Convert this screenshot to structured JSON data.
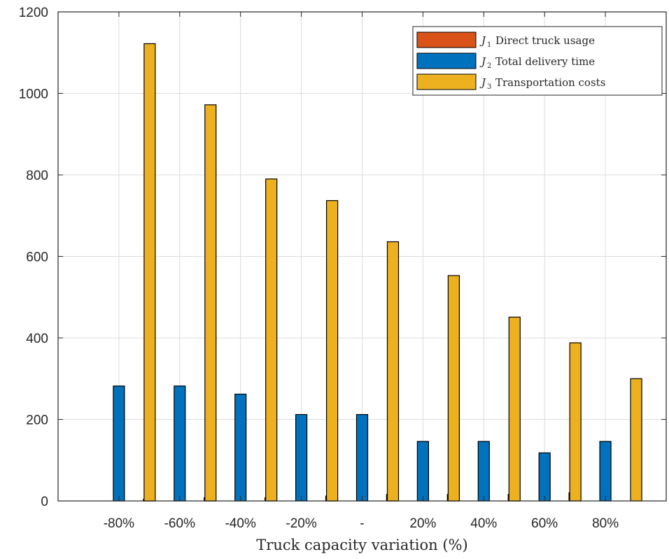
{
  "chart_data": {
    "type": "bar",
    "categories": [
      "-80%",
      "-60%",
      "-40%",
      "-20%",
      "-",
      "20%",
      "40%",
      "60%",
      "80%"
    ],
    "series": [
      {
        "symbol": "J",
        "subscript": "1",
        "name": "Direct truck usage",
        "color": "#D95319",
        "values": [
          0,
          4,
          8,
          8,
          12,
          16,
          16,
          16,
          20
        ]
      },
      {
        "symbol": "J",
        "subscript": "2",
        "name": "Total delivery time",
        "color": "#0072BD",
        "values": [
          282,
          282,
          262,
          212,
          212,
          146,
          146,
          118,
          146
        ]
      },
      {
        "symbol": "J",
        "subscript": "3",
        "name": "Transportation costs",
        "color": "#EDB120",
        "values": [
          1122,
          972,
          790,
          737,
          636,
          553,
          451,
          388,
          300
        ]
      }
    ],
    "xlabel": "Truck capacity variation (%)",
    "ylabel": "",
    "ylim": [
      0,
      1200
    ],
    "yticks": [
      0,
      200,
      400,
      600,
      800,
      1000,
      1200
    ],
    "grid": true,
    "legend_position": "top-right"
  }
}
